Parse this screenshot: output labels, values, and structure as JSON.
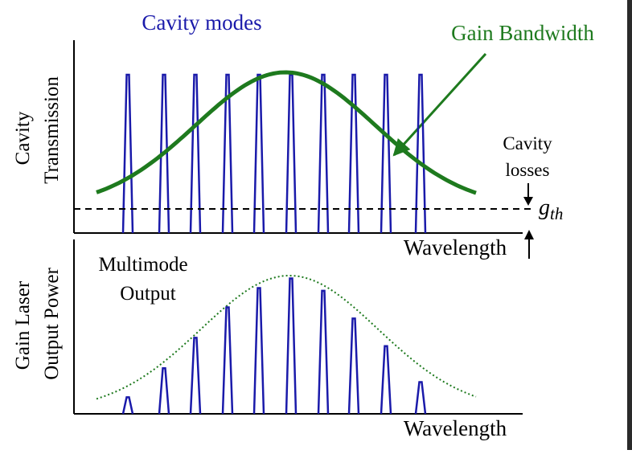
{
  "top_panel": {
    "title": "Cavity modes",
    "gain_label": "Gain Bandwidth",
    "y_label_line1": "Cavity",
    "y_label_line2": "Transmission",
    "x_label": "Wavelength",
    "losses_line1": "Cavity",
    "losses_line2": "losses",
    "threshold_symbol": "g",
    "threshold_subscript": "th"
  },
  "bottom_panel": {
    "annotation_line1": "Multimode",
    "annotation_line2": "Output",
    "y_label_line1": "Gain Laser",
    "y_label_line2": "Output Power",
    "x_label": "Wavelength"
  },
  "colors": {
    "modes": "#1a1aaa",
    "gain_curve": "#1e7a1e",
    "title_text": "#1a1aaa",
    "gain_text": "#1e7a1e",
    "axis": "#000000"
  },
  "chart_data": [
    {
      "type": "line",
      "title": "Cavity modes",
      "xlabel": "Wavelength",
      "ylabel": "Cavity Transmission",
      "series": [
        {
          "name": "Gain Bandwidth",
          "kind": "gaussian-curve"
        },
        {
          "name": "Cavity modes",
          "kind": "equal-height-peaks",
          "count": 10,
          "relative_heights": [
            1,
            1,
            1,
            1,
            1,
            1,
            1,
            1,
            1,
            1
          ]
        }
      ],
      "threshold_label": "g_th"
    },
    {
      "type": "line",
      "xlabel": "Wavelength",
      "ylabel": "Gain Laser Output Power",
      "series": [
        {
          "kind": "envelope-dotted"
        },
        {
          "kind": "output-peaks",
          "count": 10,
          "relative_heights": [
            0.12,
            0.33,
            0.55,
            0.77,
            0.91,
            0.98,
            0.89,
            0.69,
            0.49,
            0.23
          ]
        }
      ]
    }
  ]
}
